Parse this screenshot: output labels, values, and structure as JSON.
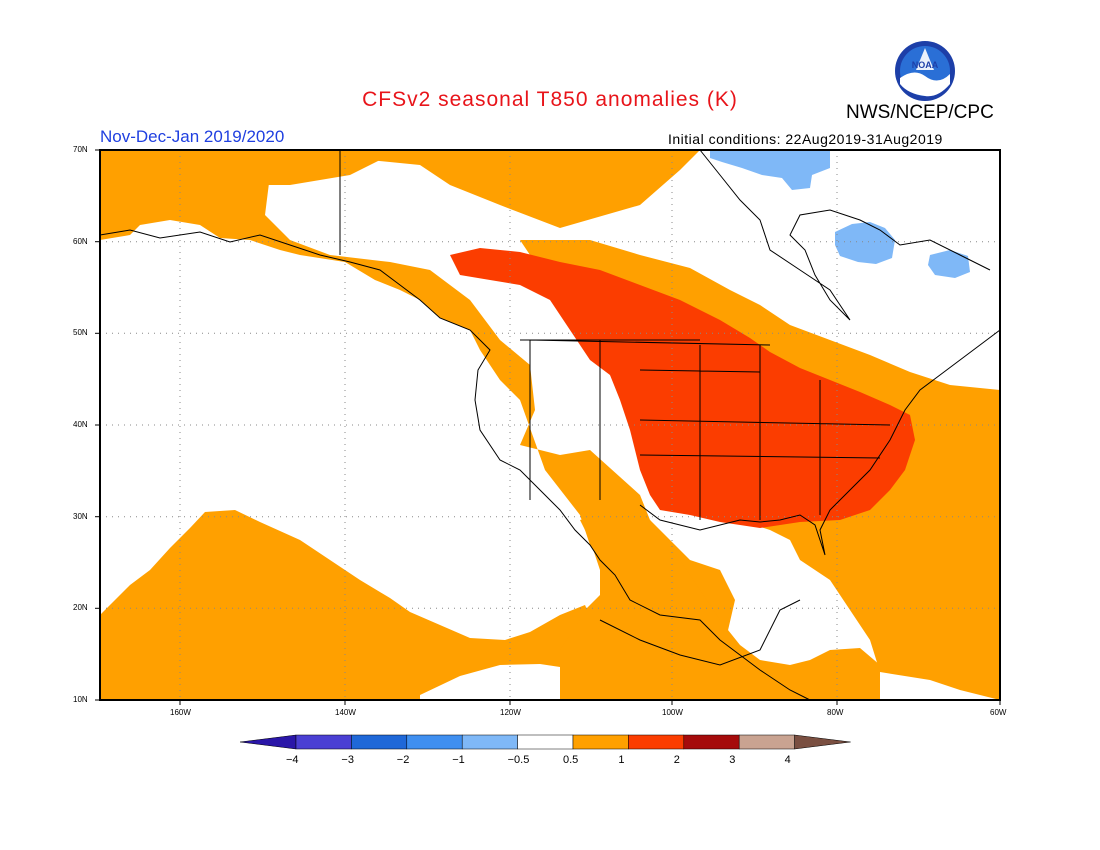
{
  "title": "CFSv2 seasonal T850 anomalies (K)",
  "organization": "NWS/NCEP/CPC",
  "logo_text": "NOAA",
  "period": "Nov-Dec-Jan 2019/2020",
  "initial_conditions": "Initial conditions: 22Aug2019-31Aug2019",
  "lat_labels": [
    "70N",
    "60N",
    "50N",
    "40N",
    "30N",
    "20N",
    "10N"
  ],
  "lon_labels": [
    "160W",
    "140W",
    "120W",
    "100W",
    "80W",
    "60W"
  ],
  "colorbar": {
    "labels": [
      "−4",
      "−3",
      "−2",
      "−1",
      "−0.5",
      "0.5",
      "1",
      "2",
      "3",
      "4"
    ],
    "colors": [
      "#2a16a8",
      "#4a3fd3",
      "#1f68d8",
      "#3f8ff0",
      "#7fb8f7",
      "#ffffff",
      "#ffa000",
      "#fb3d00",
      "#a50b0b",
      "#c9a391",
      "#7a4f41"
    ]
  },
  "colors": {
    "weak_warm": "#ffa000",
    "moderate_warm": "#fb3d00",
    "weak_cool": "#7fb8f7"
  }
}
